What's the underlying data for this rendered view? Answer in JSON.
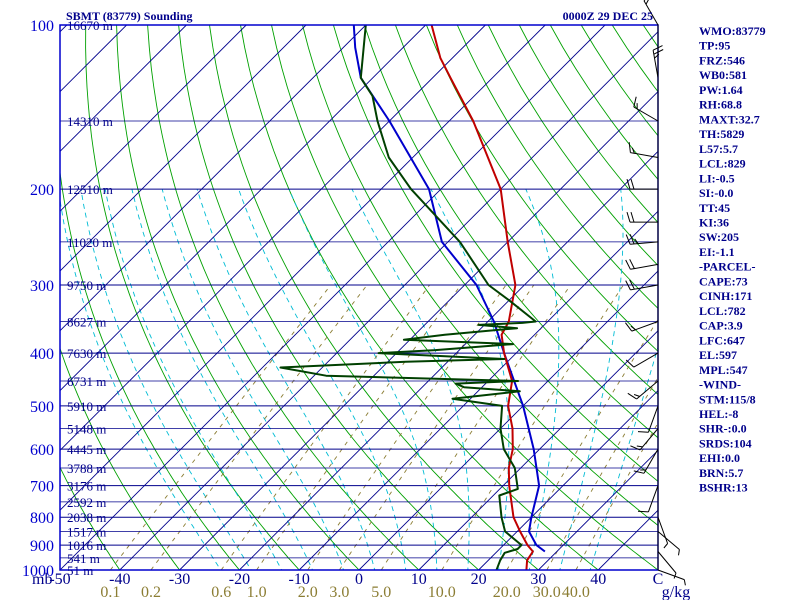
{
  "chart_data": {
    "type": "skew-t",
    "title": "SBMT (83779) Sounding",
    "datetime": "0000Z 29 DEC 25",
    "xlabel": "",
    "ylabel": "mb",
    "x_unit": "C",
    "mixing_ratio_unit": "g/kg",
    "colors": {
      "frame": "#0000cd",
      "isobar": "#00008b",
      "isotherm": "#00008b",
      "dry_adiabat": "#00a000",
      "moist_adiabat": "#00bcd4",
      "mixing_ratio": "#8b7d33",
      "temperature": "#c00000",
      "dewpoint": "#004000",
      "parcel": "#0000cc",
      "wind": "#000000"
    },
    "x_ticks": [
      -50,
      -40,
      -30,
      -20,
      -10,
      0,
      10,
      20,
      30,
      40,
      50
    ],
    "x_tick_labels": [
      "-50",
      "-40",
      "-30",
      "-20",
      "-10",
      "0",
      "10",
      "20",
      "30",
      "40",
      "C"
    ],
    "x_range": [
      -50,
      50
    ],
    "pressure_range": [
      100,
      1000
    ],
    "pressure_levels": [
      100,
      200,
      300,
      400,
      500,
      600,
      700,
      800,
      900,
      1000
    ],
    "pressure_tick_labels": [
      "100",
      "200",
      "300",
      "400",
      "500",
      "600",
      "700",
      "800",
      "900",
      "1000"
    ],
    "height_labels": [
      {
        "p": 100,
        "label": "16670 m"
      },
      {
        "p": 150,
        "label": "14310 m"
      },
      {
        "p": 200,
        "label": "12510 m"
      },
      {
        "p": 250,
        "label": "11020 m"
      },
      {
        "p": 300,
        "label": "9750 m"
      },
      {
        "p": 350,
        "label": "8627 m"
      },
      {
        "p": 400,
        "label": "7630 m"
      },
      {
        "p": 450,
        "label": "6731 m"
      },
      {
        "p": 500,
        "label": "5910 m"
      },
      {
        "p": 550,
        "label": "5148 m"
      },
      {
        "p": 600,
        "label": "4445 m"
      },
      {
        "p": 650,
        "label": "3788 m"
      },
      {
        "p": 700,
        "label": "3176 m"
      },
      {
        "p": 750,
        "label": "2592 m"
      },
      {
        "p": 800,
        "label": "2038 m"
      },
      {
        "p": 850,
        "label": "1517 m"
      },
      {
        "p": 900,
        "label": "1016 m"
      },
      {
        "p": 950,
        "label": "541 m"
      },
      {
        "p": 1000,
        "label": "51 m"
      }
    ],
    "mixing_ratios": [
      0.1,
      0.2,
      0.6,
      1.0,
      2.0,
      3.0,
      5.0,
      10.0,
      20.0,
      30.0,
      40.0
    ],
    "mixing_ratio_labels": [
      "0.1",
      "0.2",
      "0.6",
      "1.0",
      "2.0",
      "3.0",
      "5.0",
      "10.0",
      "20.0",
      "30.0",
      "40.0"
    ],
    "temperature_profile": [
      {
        "p": 1000,
        "t": 28
      },
      {
        "p": 960,
        "t": 26.5
      },
      {
        "p": 925,
        "t": 26
      },
      {
        "p": 900,
        "t": 24
      },
      {
        "p": 850,
        "t": 20.5
      },
      {
        "p": 800,
        "t": 17
      },
      {
        "p": 700,
        "t": 11
      },
      {
        "p": 650,
        "t": 8
      },
      {
        "p": 600,
        "t": 5.5
      },
      {
        "p": 550,
        "t": 2
      },
      {
        "p": 500,
        "t": -2.5
      },
      {
        "p": 450,
        "t": -6
      },
      {
        "p": 400,
        "t": -12
      },
      {
        "p": 370,
        "t": -15.5
      },
      {
        "p": 350,
        "t": -16.5
      },
      {
        "p": 300,
        "t": -21.5
      },
      {
        "p": 250,
        "t": -30
      },
      {
        "p": 200,
        "t": -40
      },
      {
        "p": 150,
        "t": -56
      },
      {
        "p": 125,
        "t": -67
      },
      {
        "p": 115,
        "t": -72
      },
      {
        "p": 100,
        "t": -79
      }
    ],
    "dewpoint_profile": [
      {
        "p": 1000,
        "t": 23
      },
      {
        "p": 960,
        "t": 22
      },
      {
        "p": 930,
        "t": 21.5
      },
      {
        "p": 915,
        "t": 23
      },
      {
        "p": 900,
        "t": 23
      },
      {
        "p": 850,
        "t": 18
      },
      {
        "p": 800,
        "t": 15
      },
      {
        "p": 730,
        "t": 11
      },
      {
        "p": 710,
        "t": 13
      },
      {
        "p": 650,
        "t": 9
      },
      {
        "p": 600,
        "t": 4
      },
      {
        "p": 550,
        "t": 0
      },
      {
        "p": 500,
        "t": -3.5
      },
      {
        "p": 485,
        "t": -13
      },
      {
        "p": 470,
        "t": -3
      },
      {
        "p": 462,
        "t": -13
      },
      {
        "p": 455,
        "t": -15
      },
      {
        "p": 450,
        "t": -5
      },
      {
        "p": 440,
        "t": -38
      },
      {
        "p": 425,
        "t": -47
      },
      {
        "p": 415,
        "t": -27
      },
      {
        "p": 410,
        "t": -11
      },
      {
        "p": 400,
        "t": -33
      },
      {
        "p": 395,
        "t": -24
      },
      {
        "p": 385,
        "t": -12
      },
      {
        "p": 378,
        "t": -31
      },
      {
        "p": 370,
        "t": -25
      },
      {
        "p": 360,
        "t": -14
      },
      {
        "p": 355,
        "t": -21
      },
      {
        "p": 352,
        "t": -14
      },
      {
        "p": 350,
        "t": -12
      },
      {
        "p": 320,
        "t": -20
      },
      {
        "p": 300,
        "t": -26
      },
      {
        "p": 250,
        "t": -38
      },
      {
        "p": 200,
        "t": -55
      },
      {
        "p": 175,
        "t": -64
      },
      {
        "p": 150,
        "t": -72
      },
      {
        "p": 135,
        "t": -77
      },
      {
        "p": 125,
        "t": -82
      },
      {
        "p": 100,
        "t": -90
      }
    ],
    "parcel_profile": [
      {
        "p": 925,
        "t": 28
      },
      {
        "p": 900,
        "t": 25.5
      },
      {
        "p": 850,
        "t": 22
      },
      {
        "p": 800,
        "t": 20
      },
      {
        "p": 700,
        "t": 16
      },
      {
        "p": 600,
        "t": 9
      },
      {
        "p": 500,
        "t": 0
      },
      {
        "p": 400,
        "t": -12
      },
      {
        "p": 350,
        "t": -19
      },
      {
        "p": 300,
        "t": -28
      },
      {
        "p": 250,
        "t": -41
      },
      {
        "p": 200,
        "t": -52
      },
      {
        "p": 150,
        "t": -70
      },
      {
        "p": 125,
        "t": -82
      },
      {
        "p": 110,
        "t": -88
      },
      {
        "p": 100,
        "t": -92
      }
    ],
    "wind_barbs": [
      {
        "p": 100,
        "dir": 330,
        "spd": 15
      },
      {
        "p": 125,
        "dir": 350,
        "spd": 25
      },
      {
        "p": 150,
        "dir": 300,
        "spd": 15
      },
      {
        "p": 175,
        "dir": 280,
        "spd": 15
      },
      {
        "p": 200,
        "dir": 270,
        "spd": 20
      },
      {
        "p": 230,
        "dir": 270,
        "spd": 20
      },
      {
        "p": 250,
        "dir": 265,
        "spd": 25
      },
      {
        "p": 275,
        "dir": 260,
        "spd": 20
      },
      {
        "p": 300,
        "dir": 260,
        "spd": 20
      },
      {
        "p": 350,
        "dir": 250,
        "spd": 15
      },
      {
        "p": 400,
        "dir": 240,
        "spd": 10
      },
      {
        "p": 450,
        "dir": 230,
        "spd": 15
      },
      {
        "p": 500,
        "dir": 200,
        "spd": 10
      },
      {
        "p": 550,
        "dir": 220,
        "spd": 15
      },
      {
        "p": 600,
        "dir": 210,
        "spd": 15
      },
      {
        "p": 700,
        "dir": 200,
        "spd": 10
      },
      {
        "p": 800,
        "dir": 160,
        "spd": 5
      },
      {
        "p": 850,
        "dir": 130,
        "spd": 5
      },
      {
        "p": 925,
        "dir": 140,
        "spd": 5
      },
      {
        "p": 1000,
        "dir": 110,
        "spd": 5
      }
    ]
  },
  "indices": [
    "WMO:83779",
    "TP:95",
    "FRZ:546",
    "WB0:581",
    "PW:1.64",
    "RH:68.8",
    "MAXT:32.7",
    "TH:5829",
    "L57:5.7",
    "LCL:829",
    "LI:-0.5",
    "SI:-0.0",
    "TT:45",
    "KI:36",
    "SW:205",
    "EI:-1.1",
    "-PARCEL-",
    "CAPE:73",
    "CINH:171",
    "LCL:782",
    "CAP:3.9",
    "LFC:647",
    "EL:597",
    "MPL:547",
    "-WIND-",
    "STM:115/8",
    "HEL:-8",
    "SHR-:0.0",
    "SRDS:104",
    "EHI:0.0",
    "BRN:5.7",
    "BSHR:13"
  ]
}
